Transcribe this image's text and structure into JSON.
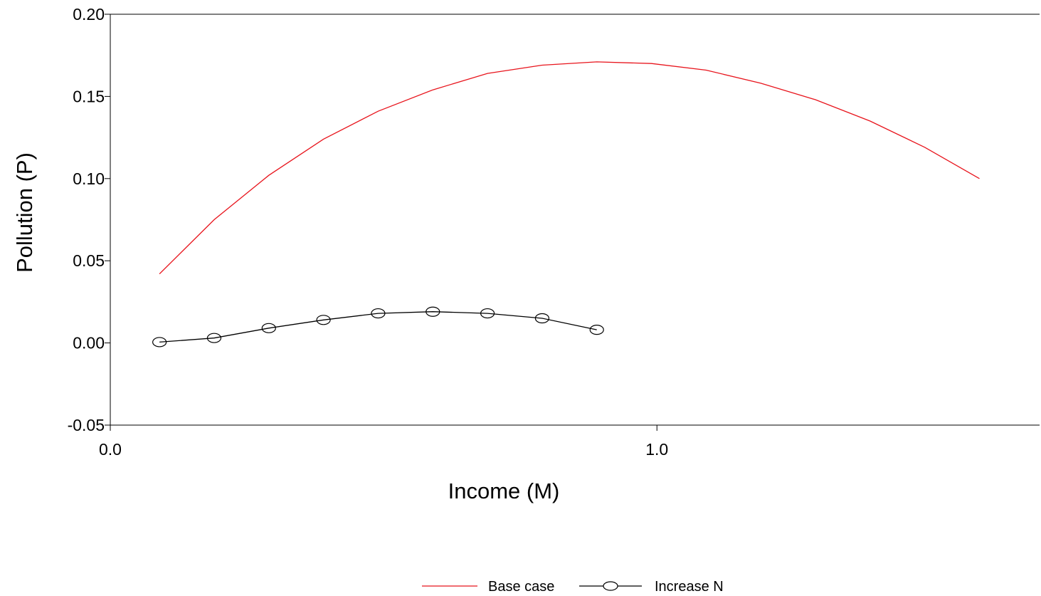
{
  "chart_data": {
    "type": "line",
    "xlabel": "Income (M)",
    "ylabel": "Pollution (P)",
    "xlim": [
      0.0,
      1.7
    ],
    "ylim": [
      -0.05,
      0.2
    ],
    "x_ticks": [
      0.0,
      1.0
    ],
    "x_tick_labels": [
      "0.0",
      "1.0"
    ],
    "y_ticks": [
      -0.05,
      0.0,
      0.05,
      0.1,
      0.15,
      0.2
    ],
    "y_tick_labels": [
      "-0.05",
      "0.00",
      "0.05",
      "0.10",
      "0.15",
      "0.20"
    ],
    "grid": false,
    "legend_position": "bottom-center",
    "series": [
      {
        "name": "Base case",
        "color": "#e8141c",
        "marker": "none",
        "x": [
          0.09,
          0.19,
          0.29,
          0.39,
          0.49,
          0.59,
          0.69,
          0.79,
          0.89,
          0.99,
          1.09,
          1.19,
          1.29,
          1.39,
          1.49,
          1.59
        ],
        "y": [
          0.042,
          0.075,
          0.102,
          0.124,
          0.141,
          0.154,
          0.164,
          0.169,
          0.171,
          0.17,
          0.166,
          0.158,
          0.148,
          0.135,
          0.119,
          0.1
        ]
      },
      {
        "name": "Increase N",
        "color": "#000000",
        "marker": "circle",
        "x": [
          0.09,
          0.19,
          0.29,
          0.39,
          0.49,
          0.59,
          0.69,
          0.79,
          0.89
        ],
        "y": [
          0.0005,
          0.003,
          0.009,
          0.014,
          0.018,
          0.019,
          0.018,
          0.015,
          0.008
        ]
      }
    ]
  }
}
